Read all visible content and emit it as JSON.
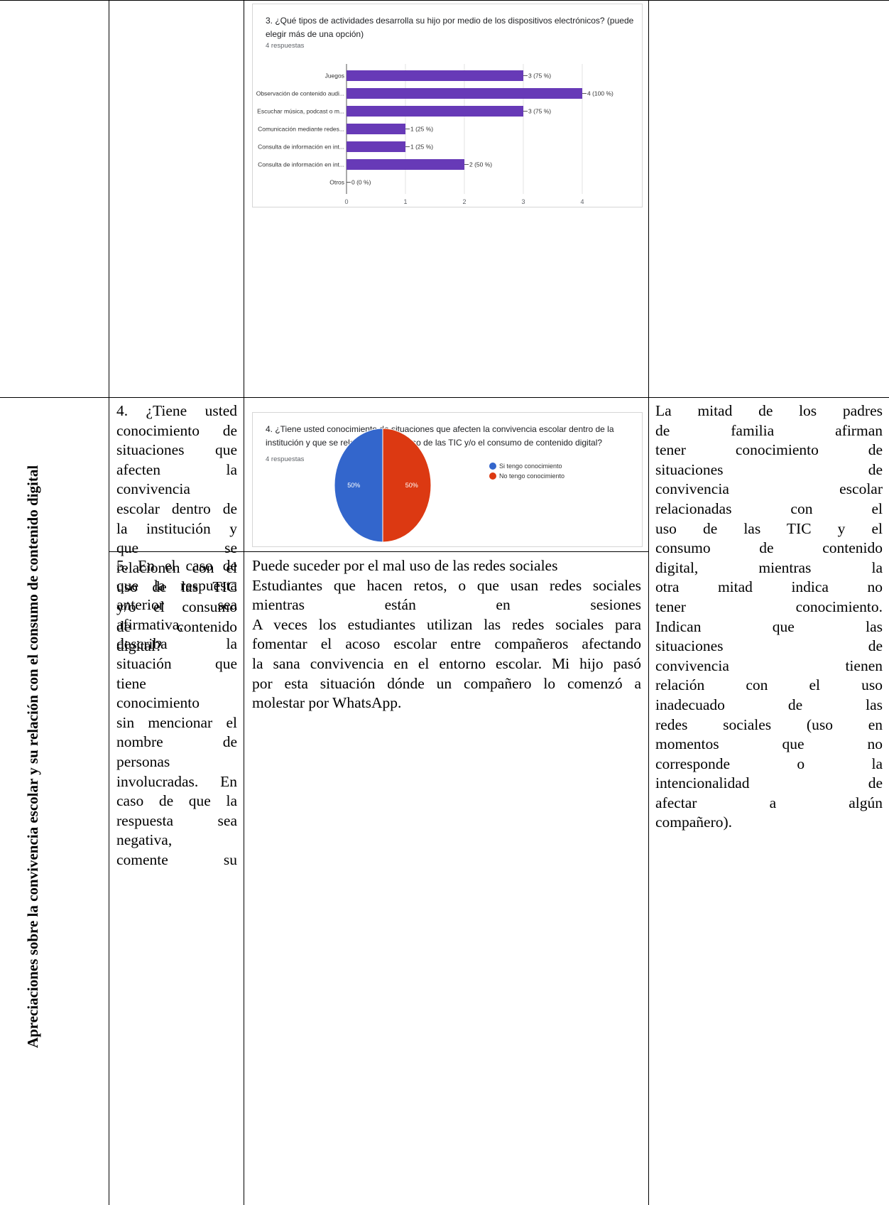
{
  "section_label": "Apreciaciones sobre la convivencia escolar y su relación con el consumo de contenido digital",
  "chart1": {
    "title_lines": [
      "3. ¿Qué tipos de actividades desarrolla su hijo por medio de los dispositivos electrónicos? (puede",
      "elegir más de una opción)"
    ],
    "responses": "4 respuestas",
    "chart_data": {
      "type": "bar",
      "orientation": "horizontal",
      "categories": [
        "Juegos",
        "Observación de contenido audi...",
        "Escuchar música, podcast o m...",
        "Comunicación mediante redes...",
        "Consulta de información en int...",
        "Consulta de información en int...",
        "Otros"
      ],
      "values": [
        3,
        4,
        3,
        1,
        1,
        2,
        0
      ],
      "value_labels": [
        "3 (75 %)",
        "4 (100 %)",
        "3 (75 %)",
        "1 (25 %)",
        "1 (25 %)",
        "2 (50 %)",
        "0 (0 %)"
      ],
      "xlim": [
        0,
        4
      ],
      "xticks": [
        "0",
        "1",
        "2",
        "3",
        "4"
      ],
      "bar_color": "#673ab7",
      "grid": true
    }
  },
  "chart2": {
    "title_lines": [
      "4. ¿Tiene usted conocimiento de situaciones que afecten la convivencia escolar dentro de la",
      "institución y que se relacionen con el uso de las TIC y/o el consumo de contenido digital?"
    ],
    "responses": "4 respuestas",
    "chart_data": {
      "type": "pie",
      "categories": [
        "Si tengo conocimiento",
        "No tengo conocimiento"
      ],
      "values": [
        50,
        50
      ],
      "value_labels": [
        "50%",
        "50%"
      ],
      "colors": [
        "#3366cc",
        "#dc3912"
      ],
      "legend": "right"
    }
  },
  "question4_lines": [
    "4. ¿Tiene usted",
    "conocimiento de",
    "situaciones que",
    "afecten la",
    "convivencia",
    "escolar dentro de",
    "la institución y",
    "que se",
    "relacionen con el",
    "uso de las TIC",
    "y/o el consumo",
    "de contenido",
    "digital?"
  ],
  "question5_lines": [
    "5. En el caso de",
    "que la respuesta",
    "anterior sea",
    "afirmativa,",
    "describa la",
    "situación que",
    "tiene",
    "conocimiento",
    "sin mencionar el",
    "nombre de",
    "personas",
    "involucradas. En",
    "caso de que la",
    "respuesta sea",
    "negativa,",
    "comente su"
  ],
  "answer5_lines": [
    "Puede suceder por el mal uso de las redes sociales",
    "Estudiantes que hacen retos, o que usan redes sociales",
    "mientras están en sesiones",
    "A veces los estudiantes utilizan las redes sociales para",
    "fomentar el acoso escolar entre compañeros afectando",
    "la sana convivencia en el entorno escolar. Mi hijo pasó",
    "por esta situación dónde un compañero lo comenzó a",
    "molestar por WhatsApp."
  ],
  "analysis_lines": [
    "La mitad de los padres",
    "de familia afirman",
    "tener conocimiento de",
    "situaciones de",
    "convivencia escolar",
    "relacionadas con el",
    "uso de las TIC y el",
    "consumo de contenido",
    "digital, mientras la",
    "otra mitad indica no",
    "tener conocimiento.",
    "Indican que las",
    "situaciones de",
    "convivencia tienen",
    "relación con el uso",
    "inadecuado de las",
    "redes sociales (uso en",
    "momentos que no",
    "corresponde o la",
    "intencionalidad de",
    "afectar a algún",
    "compañero)."
  ]
}
